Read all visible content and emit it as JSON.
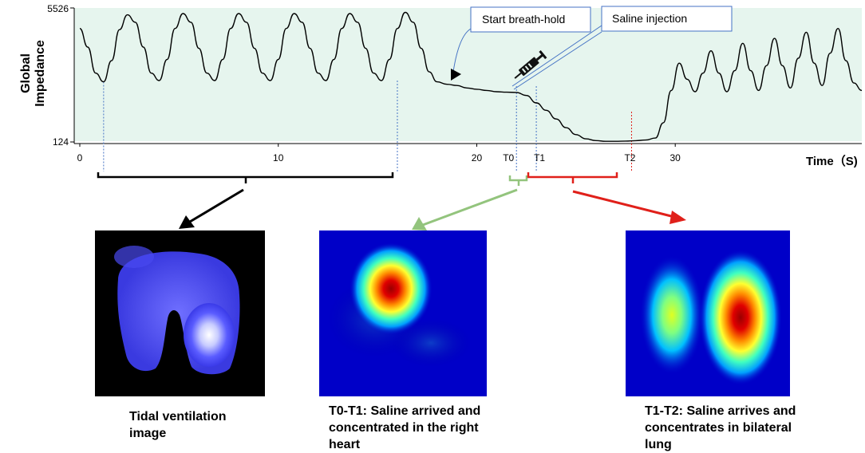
{
  "chart_data": {
    "type": "line",
    "ylabel_line1": "Global",
    "ylabel_line2": "Impedance",
    "xlabel": "Time（S)",
    "ylim": [
      124,
      5526
    ],
    "y_ticks": [
      "5526",
      "124"
    ],
    "x_ticks": [
      {
        "value": 0,
        "label": "0"
      },
      {
        "value": 10,
        "label": "10"
      },
      {
        "value": 20,
        "label": "20"
      },
      {
        "value": 30,
        "label": "30"
      }
    ],
    "xlim": [
      0,
      39.4
    ],
    "markers": [
      {
        "value": 22.0,
        "label": "T0",
        "color": "#4472c4"
      },
      {
        "value": 23.0,
        "label": "T1",
        "color": "#4472c4"
      },
      {
        "value": 27.8,
        "label": "T2",
        "color": "#e0201a"
      }
    ],
    "series": [
      {
        "color": "#000000",
        "x": [
          0.0,
          0.4,
          0.8,
          1.2,
          1.6,
          2.0,
          2.4,
          2.8,
          3.2,
          3.6,
          4.0,
          4.4,
          4.8,
          5.2,
          5.6,
          6.0,
          6.4,
          6.8,
          7.2,
          7.6,
          8.0,
          8.4,
          8.8,
          9.2,
          9.6,
          10.0,
          10.4,
          10.8,
          11.2,
          11.6,
          12.0,
          12.4,
          12.8,
          13.2,
          13.6,
          14.0,
          14.4,
          14.8,
          15.2,
          15.6,
          16.0,
          16.4,
          16.8,
          17.2,
          17.6,
          18.0,
          18.5,
          19.0,
          19.5,
          20.0,
          20.5,
          21.0,
          21.5,
          22.0,
          22.5,
          23.0,
          23.5,
          24.0,
          24.5,
          25.0,
          25.5,
          26.0,
          26.5,
          27.0,
          27.5,
          28.0,
          28.5,
          29.0,
          29.4,
          29.8,
          30.2,
          30.6,
          31.0,
          31.4,
          31.8,
          32.2,
          32.6,
          33.0,
          33.4,
          33.8,
          34.2,
          34.6,
          35.0,
          35.4,
          35.8,
          36.2,
          36.6,
          37.0,
          37.4,
          37.8,
          38.2,
          38.6,
          39.0,
          39.4
        ],
        "y": [
          4700,
          3950,
          2900,
          2550,
          3400,
          4650,
          5250,
          4950,
          3950,
          2900,
          2600,
          3450,
          4700,
          5300,
          4950,
          3900,
          2900,
          2600,
          3450,
          4700,
          5300,
          4950,
          3900,
          2900,
          2600,
          3450,
          4700,
          5300,
          4950,
          3900,
          2900,
          2600,
          3450,
          4700,
          5300,
          4950,
          3900,
          2900,
          2600,
          3450,
          4700,
          5350,
          4950,
          3900,
          2950,
          2550,
          2450,
          2400,
          2300,
          2250,
          2200,
          2150,
          2130,
          2120,
          2000,
          1700,
          1400,
          1050,
          700,
          420,
          250,
          180,
          150,
          150,
          160,
          175,
          200,
          280,
          900,
          2200,
          3300,
          2650,
          2150,
          2900,
          3800,
          2900,
          2150,
          3000,
          4100,
          3000,
          2200,
          3200,
          4300,
          3200,
          2300,
          3500,
          4550,
          3300,
          2400,
          3700,
          4700,
          3400,
          2500,
          2200
        ]
      }
    ],
    "annotations": {
      "breath_hold": "Start breath-hold",
      "saline": "Saline injection"
    }
  },
  "captions": {
    "tidal": [
      "Tidal ventilation",
      "image"
    ],
    "t0t1": [
      "T0-T1: Saline arrived and",
      "concentrated in the right",
      "heart"
    ],
    "t1t2": [
      "T1-T2: Saline arrives and",
      "concentrates in bilateral",
      "lung"
    ]
  },
  "colors": {
    "plot_bg": "#e6f5ee",
    "bracket_black": "#000000",
    "bracket_green": "#93c47d",
    "bracket_red": "#e0201a",
    "marker_blue": "#4472c4"
  },
  "images": {
    "tidal": {
      "name": "tidal-ventilation-image",
      "colormap": "blue-white",
      "background": "#000000"
    },
    "t0t1": {
      "name": "right-heart-perfusion-image",
      "colormap": "jet"
    },
    "t1t2": {
      "name": "bilateral-lung-perfusion-image",
      "colormap": "jet"
    }
  }
}
